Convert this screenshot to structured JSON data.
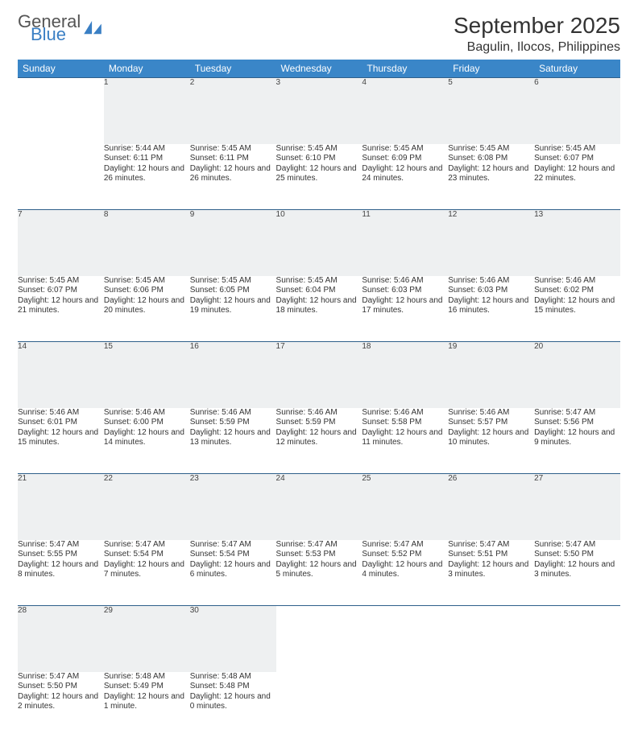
{
  "brand": {
    "word1": "General",
    "word2": "Blue",
    "sail_color": "#3a7fc4",
    "text1_color": "#555",
    "text2_color": "#3a7fc4"
  },
  "title": "September 2025",
  "location": "Bagulin, Ilocos, Philippines",
  "colors": {
    "header_bg": "#3a86c8",
    "header_text": "#ffffff",
    "daynum_bg": "#eef0f1",
    "row_border": "#2e5f8a",
    "body_text": "#333333"
  },
  "weekdays": [
    "Sunday",
    "Monday",
    "Tuesday",
    "Wednesday",
    "Thursday",
    "Friday",
    "Saturday"
  ],
  "weeks": [
    [
      null,
      {
        "n": "1",
        "sr": "Sunrise: 5:44 AM",
        "ss": "Sunset: 6:11 PM",
        "dl": "Daylight: 12 hours and 26 minutes."
      },
      {
        "n": "2",
        "sr": "Sunrise: 5:45 AM",
        "ss": "Sunset: 6:11 PM",
        "dl": "Daylight: 12 hours and 26 minutes."
      },
      {
        "n": "3",
        "sr": "Sunrise: 5:45 AM",
        "ss": "Sunset: 6:10 PM",
        "dl": "Daylight: 12 hours and 25 minutes."
      },
      {
        "n": "4",
        "sr": "Sunrise: 5:45 AM",
        "ss": "Sunset: 6:09 PM",
        "dl": "Daylight: 12 hours and 24 minutes."
      },
      {
        "n": "5",
        "sr": "Sunrise: 5:45 AM",
        "ss": "Sunset: 6:08 PM",
        "dl": "Daylight: 12 hours and 23 minutes."
      },
      {
        "n": "6",
        "sr": "Sunrise: 5:45 AM",
        "ss": "Sunset: 6:07 PM",
        "dl": "Daylight: 12 hours and 22 minutes."
      }
    ],
    [
      {
        "n": "7",
        "sr": "Sunrise: 5:45 AM",
        "ss": "Sunset: 6:07 PM",
        "dl": "Daylight: 12 hours and 21 minutes."
      },
      {
        "n": "8",
        "sr": "Sunrise: 5:45 AM",
        "ss": "Sunset: 6:06 PM",
        "dl": "Daylight: 12 hours and 20 minutes."
      },
      {
        "n": "9",
        "sr": "Sunrise: 5:45 AM",
        "ss": "Sunset: 6:05 PM",
        "dl": "Daylight: 12 hours and 19 minutes."
      },
      {
        "n": "10",
        "sr": "Sunrise: 5:45 AM",
        "ss": "Sunset: 6:04 PM",
        "dl": "Daylight: 12 hours and 18 minutes."
      },
      {
        "n": "11",
        "sr": "Sunrise: 5:46 AM",
        "ss": "Sunset: 6:03 PM",
        "dl": "Daylight: 12 hours and 17 minutes."
      },
      {
        "n": "12",
        "sr": "Sunrise: 5:46 AM",
        "ss": "Sunset: 6:03 PM",
        "dl": "Daylight: 12 hours and 16 minutes."
      },
      {
        "n": "13",
        "sr": "Sunrise: 5:46 AM",
        "ss": "Sunset: 6:02 PM",
        "dl": "Daylight: 12 hours and 15 minutes."
      }
    ],
    [
      {
        "n": "14",
        "sr": "Sunrise: 5:46 AM",
        "ss": "Sunset: 6:01 PM",
        "dl": "Daylight: 12 hours and 15 minutes."
      },
      {
        "n": "15",
        "sr": "Sunrise: 5:46 AM",
        "ss": "Sunset: 6:00 PM",
        "dl": "Daylight: 12 hours and 14 minutes."
      },
      {
        "n": "16",
        "sr": "Sunrise: 5:46 AM",
        "ss": "Sunset: 5:59 PM",
        "dl": "Daylight: 12 hours and 13 minutes."
      },
      {
        "n": "17",
        "sr": "Sunrise: 5:46 AM",
        "ss": "Sunset: 5:59 PM",
        "dl": "Daylight: 12 hours and 12 minutes."
      },
      {
        "n": "18",
        "sr": "Sunrise: 5:46 AM",
        "ss": "Sunset: 5:58 PM",
        "dl": "Daylight: 12 hours and 11 minutes."
      },
      {
        "n": "19",
        "sr": "Sunrise: 5:46 AM",
        "ss": "Sunset: 5:57 PM",
        "dl": "Daylight: 12 hours and 10 minutes."
      },
      {
        "n": "20",
        "sr": "Sunrise: 5:47 AM",
        "ss": "Sunset: 5:56 PM",
        "dl": "Daylight: 12 hours and 9 minutes."
      }
    ],
    [
      {
        "n": "21",
        "sr": "Sunrise: 5:47 AM",
        "ss": "Sunset: 5:55 PM",
        "dl": "Daylight: 12 hours and 8 minutes."
      },
      {
        "n": "22",
        "sr": "Sunrise: 5:47 AM",
        "ss": "Sunset: 5:54 PM",
        "dl": "Daylight: 12 hours and 7 minutes."
      },
      {
        "n": "23",
        "sr": "Sunrise: 5:47 AM",
        "ss": "Sunset: 5:54 PM",
        "dl": "Daylight: 12 hours and 6 minutes."
      },
      {
        "n": "24",
        "sr": "Sunrise: 5:47 AM",
        "ss": "Sunset: 5:53 PM",
        "dl": "Daylight: 12 hours and 5 minutes."
      },
      {
        "n": "25",
        "sr": "Sunrise: 5:47 AM",
        "ss": "Sunset: 5:52 PM",
        "dl": "Daylight: 12 hours and 4 minutes."
      },
      {
        "n": "26",
        "sr": "Sunrise: 5:47 AM",
        "ss": "Sunset: 5:51 PM",
        "dl": "Daylight: 12 hours and 3 minutes."
      },
      {
        "n": "27",
        "sr": "Sunrise: 5:47 AM",
        "ss": "Sunset: 5:50 PM",
        "dl": "Daylight: 12 hours and 3 minutes."
      }
    ],
    [
      {
        "n": "28",
        "sr": "Sunrise: 5:47 AM",
        "ss": "Sunset: 5:50 PM",
        "dl": "Daylight: 12 hours and 2 minutes."
      },
      {
        "n": "29",
        "sr": "Sunrise: 5:48 AM",
        "ss": "Sunset: 5:49 PM",
        "dl": "Daylight: 12 hours and 1 minute."
      },
      {
        "n": "30",
        "sr": "Sunrise: 5:48 AM",
        "ss": "Sunset: 5:48 PM",
        "dl": "Daylight: 12 hours and 0 minutes."
      },
      null,
      null,
      null,
      null
    ]
  ]
}
